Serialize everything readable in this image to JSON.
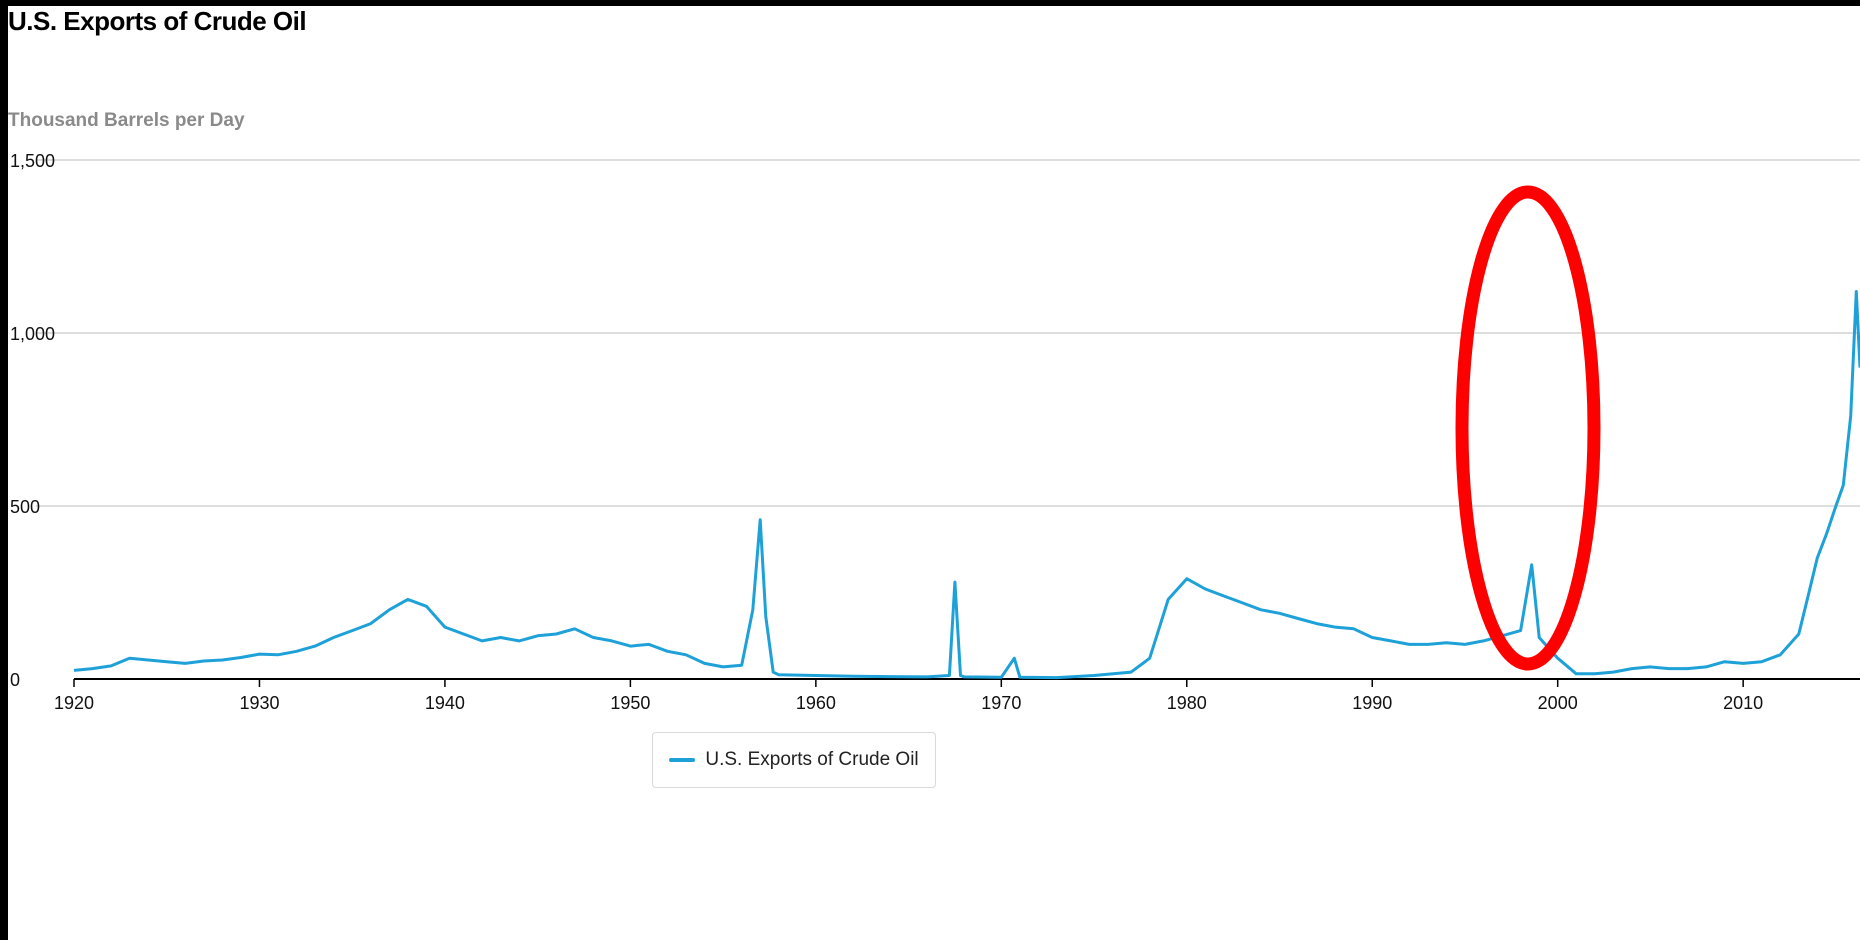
{
  "title": "U.S. Exports of Crude Oil",
  "unit_label": "Thousand Barrels per Day",
  "colors": {
    "series": "#1ea1d8",
    "annotation": "#ff0000",
    "grid": "#d3d3d3",
    "axis": "#000000"
  },
  "chart_data": {
    "type": "line",
    "title": "U.S. Exports of Crude Oil",
    "ylabel": "Thousand Barrels per Day",
    "xlabel": "",
    "xlim": [
      1920,
      2016.3
    ],
    "ylim": [
      0,
      1500
    ],
    "x_ticks": [
      1920,
      1930,
      1940,
      1950,
      1960,
      1970,
      1980,
      1990,
      2000,
      2010
    ],
    "y_ticks": [
      {
        "value": 0,
        "label": "0"
      },
      {
        "value": 500,
        "label": "500"
      },
      {
        "value": 1000,
        "label": "1,000"
      },
      {
        "value": 1500,
        "label": "1,500"
      }
    ],
    "grid": true,
    "legend_position": "bottom-center",
    "series": [
      {
        "name": "U.S. Exports of Crude Oil",
        "points": [
          [
            1920,
            25
          ],
          [
            1921,
            30
          ],
          [
            1922,
            38
          ],
          [
            1923,
            60
          ],
          [
            1924,
            55
          ],
          [
            1925,
            50
          ],
          [
            1926,
            45
          ],
          [
            1927,
            52
          ],
          [
            1928,
            55
          ],
          [
            1929,
            62
          ],
          [
            1930,
            72
          ],
          [
            1931,
            70
          ],
          [
            1932,
            80
          ],
          [
            1933,
            95
          ],
          [
            1934,
            120
          ],
          [
            1935,
            140
          ],
          [
            1936,
            160
          ],
          [
            1937,
            200
          ],
          [
            1938,
            230
          ],
          [
            1939,
            210
          ],
          [
            1940,
            150
          ],
          [
            1941,
            130
          ],
          [
            1942,
            110
          ],
          [
            1943,
            120
          ],
          [
            1944,
            110
          ],
          [
            1945,
            125
          ],
          [
            1946,
            130
          ],
          [
            1947,
            145
          ],
          [
            1948,
            120
          ],
          [
            1949,
            110
          ],
          [
            1950,
            95
          ],
          [
            1951,
            100
          ],
          [
            1952,
            80
          ],
          [
            1953,
            70
          ],
          [
            1954,
            45
          ],
          [
            1955,
            35
          ],
          [
            1956,
            40
          ],
          [
            1956.6,
            200
          ],
          [
            1957.0,
            460
          ],
          [
            1957.3,
            180
          ],
          [
            1957.7,
            20
          ],
          [
            1958,
            12
          ],
          [
            1960,
            10
          ],
          [
            1962,
            8
          ],
          [
            1964,
            7
          ],
          [
            1966,
            6
          ],
          [
            1967.2,
            10
          ],
          [
            1967.5,
            280
          ],
          [
            1967.8,
            10
          ],
          [
            1968,
            6
          ],
          [
            1970,
            5
          ],
          [
            1970.7,
            60
          ],
          [
            1971,
            5
          ],
          [
            1973,
            4
          ],
          [
            1975,
            10
          ],
          [
            1977,
            20
          ],
          [
            1978,
            60
          ],
          [
            1979,
            230
          ],
          [
            1980,
            290
          ],
          [
            1981,
            260
          ],
          [
            1982,
            240
          ],
          [
            1983,
            220
          ],
          [
            1984,
            200
          ],
          [
            1985,
            190
          ],
          [
            1986,
            175
          ],
          [
            1987,
            160
          ],
          [
            1988,
            150
          ],
          [
            1989,
            145
          ],
          [
            1990,
            120
          ],
          [
            1991,
            110
          ],
          [
            1992,
            100
          ],
          [
            1993,
            100
          ],
          [
            1994,
            105
          ],
          [
            1995,
            100
          ],
          [
            1996,
            110
          ],
          [
            1997,
            125
          ],
          [
            1998,
            140
          ],
          [
            1998.6,
            330
          ],
          [
            1999,
            120
          ],
          [
            2000,
            60
          ],
          [
            2001,
            15
          ],
          [
            2002,
            15
          ],
          [
            2003,
            20
          ],
          [
            2004,
            30
          ],
          [
            2005,
            35
          ],
          [
            2006,
            30
          ],
          [
            2007,
            30
          ],
          [
            2008,
            35
          ],
          [
            2009,
            50
          ],
          [
            2010,
            45
          ],
          [
            2011,
            50
          ],
          [
            2012,
            70
          ],
          [
            2013,
            130
          ],
          [
            2013.5,
            240
          ],
          [
            2014,
            350
          ],
          [
            2014.5,
            420
          ],
          [
            2015,
            500
          ],
          [
            2015.4,
            560
          ],
          [
            2015.8,
            760
          ],
          [
            2016.1,
            1120
          ],
          [
            2016.3,
            900
          ]
        ]
      }
    ]
  }
}
